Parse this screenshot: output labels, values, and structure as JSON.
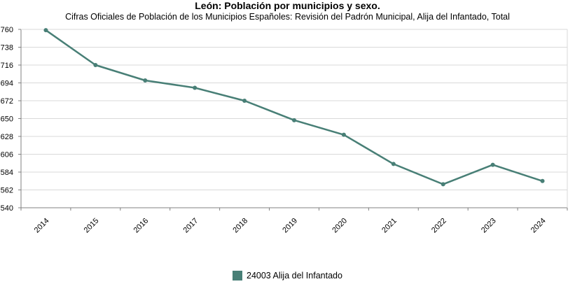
{
  "chart_data": {
    "type": "line",
    "title": "León: Población por municipios y sexo.",
    "subtitle": "Cifras Oficiales de Población de los Municipios Españoles: Revisión del Padrón Municipal, Alija del Infantado, Total",
    "x": [
      "2014",
      "2015",
      "2016",
      "2017",
      "2018",
      "2019",
      "2020",
      "2021",
      "2022",
      "2023",
      "2024"
    ],
    "series": [
      {
        "name": "24003 Alija del Infantado",
        "values": [
          759,
          716,
          697,
          688,
          672,
          648,
          630,
          594,
          569,
          593,
          573
        ]
      }
    ],
    "yticks": [
      540,
      562,
      584,
      606,
      628,
      650,
      672,
      694,
      716,
      738,
      760
    ],
    "ylim": [
      540,
      760
    ],
    "xlabel": "",
    "ylabel": "",
    "grid": true,
    "legend_position": "bottom",
    "colors": {
      "series": "#487f76",
      "grid": "#d9d9d9",
      "axis": "#808080"
    }
  }
}
